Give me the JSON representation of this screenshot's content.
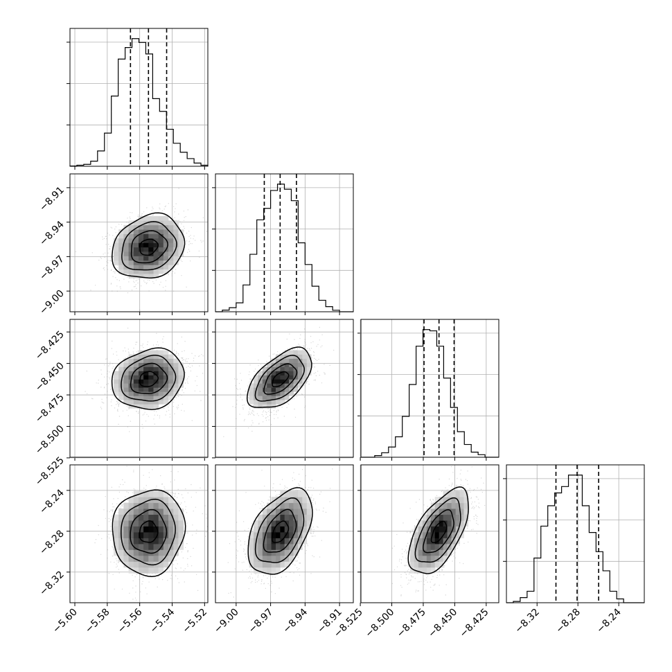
{
  "chart_data": {
    "type": "corner",
    "title": "",
    "parameters": [
      {
        "label": "",
        "range": [
          -5.603,
          -5.518
        ],
        "ticks": [
          -5.6,
          -5.58,
          -5.56,
          -5.54,
          -5.52
        ],
        "tick_labels": [
          "−5.60",
          "−5.58",
          "−5.56",
          "−5.54",
          "−5.52"
        ],
        "quantiles": [
          -5.5657,
          -5.5546,
          -5.5434
        ],
        "histogram": [
          0.2,
          0.8,
          1.5,
          4.0,
          12.0,
          26.0,
          55.0,
          84.0,
          93.0,
          100.0,
          97.0,
          88.0,
          53.0,
          43.0,
          29.0,
          18.0,
          11.0,
          6.0,
          2.5,
          0.8
        ]
      },
      {
        "label": "",
        "range": [
          -9.018,
          -8.898
        ],
        "ticks": [
          -9.0,
          -8.97,
          -8.94,
          -8.91
        ],
        "tick_labels": [
          "−9.00",
          "−8.97",
          "−8.94",
          "−8.91"
        ],
        "quantiles": [
          -8.9755,
          -8.9617,
          -8.9475
        ],
        "histogram": [
          0.0,
          1.3,
          3.2,
          7.0,
          21.0,
          45.0,
          72.0,
          81.0,
          95.0,
          100.0,
          96.0,
          87.0,
          54.0,
          37.0,
          20.0,
          9.0,
          4.0,
          1.2,
          0.0,
          0.0
        ]
      },
      {
        "label": "",
        "range": [
          -8.5245,
          -8.415
        ],
        "ticks": [
          -8.525,
          -8.5,
          -8.475,
          -8.45,
          -8.425
        ],
        "tick_labels": [
          "−8.525",
          "−8.500",
          "−8.475",
          "−8.450",
          "−8.425"
        ],
        "quantiles": [
          -8.4744,
          -8.4625,
          -8.4505
        ],
        "histogram": [
          0.0,
          0.0,
          1.3,
          3.5,
          8.0,
          16.0,
          32.0,
          57.0,
          87.0,
          100.0,
          99.0,
          87.0,
          62.0,
          39.0,
          20.0,
          10.0,
          4.0,
          2.0,
          0.0,
          0.0
        ]
      },
      {
        "label": "",
        "range": [
          -8.35,
          -8.215
        ],
        "ticks": [
          -8.32,
          -8.28,
          -8.24
        ],
        "tick_labels": [
          "−8.32",
          "−8.28",
          "−8.24"
        ],
        "quantiles": [
          -8.3015,
          -8.2808,
          -8.2597
        ],
        "histogram": [
          0.0,
          1.0,
          4.0,
          9.0,
          35.0,
          60.0,
          76.0,
          86.0,
          91.0,
          100.0,
          100.0,
          76.0,
          55.0,
          40.0,
          25.0,
          9.0,
          3.0,
          0.0,
          0.0,
          0.0
        ]
      }
    ],
    "correlations": [
      [
        1.0,
        0.18,
        0.14,
        0.05
      ],
      [
        0.18,
        1.0,
        0.55,
        0.45
      ],
      [
        0.14,
        0.55,
        1.0,
        0.6
      ],
      [
        0.05,
        0.45,
        0.6,
        1.0
      ]
    ],
    "sigma_levels": [
      0.5,
      1.0,
      1.5,
      2.0
    ],
    "grid": true,
    "colors": {
      "axes": "#000000",
      "grid": "#b0b0b0",
      "points": "#8c8c8c",
      "contour": "#000000"
    }
  }
}
